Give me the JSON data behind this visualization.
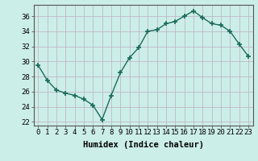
{
  "x": [
    0,
    1,
    2,
    3,
    4,
    5,
    6,
    7,
    8,
    9,
    10,
    11,
    12,
    13,
    14,
    15,
    16,
    17,
    18,
    19,
    20,
    21,
    22,
    23
  ],
  "y": [
    29.5,
    27.5,
    26.2,
    25.8,
    25.5,
    25.0,
    24.2,
    22.3,
    25.5,
    28.5,
    30.5,
    31.8,
    34.0,
    34.2,
    35.0,
    35.3,
    36.0,
    36.7,
    35.8,
    35.0,
    34.8,
    34.0,
    32.3,
    30.7
  ],
  "line_color": "#1a6b5a",
  "marker": "+",
  "markersize": 4,
  "linewidth": 1.0,
  "bg_color": "#cceee8",
  "xlabel": "Humidex (Indice chaleur)",
  "xlabel_fontsize": 7.5,
  "xlabel_fontweight": "bold",
  "ylim": [
    21.5,
    37.5
  ],
  "xlim": [
    -0.5,
    23.5
  ],
  "yticks": [
    22,
    24,
    26,
    28,
    30,
    32,
    34,
    36
  ],
  "xtick_labels": [
    "0",
    "1",
    "2",
    "3",
    "4",
    "5",
    "6",
    "7",
    "8",
    "9",
    "10",
    "11",
    "12",
    "13",
    "14",
    "15",
    "16",
    "17",
    "18",
    "19",
    "20",
    "21",
    "22",
    "23"
  ],
  "grid_color": "#c0b8c8",
  "tick_fontsize": 6.5
}
